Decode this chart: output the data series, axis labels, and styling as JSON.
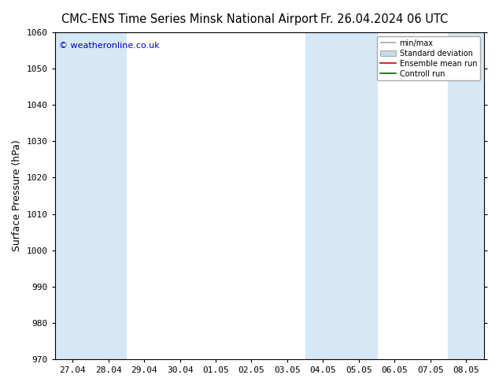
{
  "title_left": "CMC-ENS Time Series Minsk National Airport",
  "title_right": "Fr. 26.04.2024 06 UTC",
  "ylabel": "Surface Pressure (hPa)",
  "ylim": [
    970,
    1060
  ],
  "yticks": [
    970,
    980,
    990,
    1000,
    1010,
    1020,
    1030,
    1040,
    1050,
    1060
  ],
  "x_labels": [
    "27.04",
    "28.04",
    "29.04",
    "30.04",
    "01.05",
    "02.05",
    "03.05",
    "04.05",
    "05.05",
    "06.05",
    "07.05",
    "08.05"
  ],
  "x_positions": [
    0,
    1,
    2,
    3,
    4,
    5,
    6,
    7,
    8,
    9,
    10,
    11
  ],
  "shaded_intervals": [
    [
      -0.5,
      1.5
    ],
    [
      6.5,
      9.0
    ],
    [
      10.5,
      11.5
    ]
  ],
  "band_color": "#d6e8f5",
  "watermark": "© weatheronline.co.uk",
  "legend_labels": [
    "min/max",
    "Standard deviation",
    "Ensemble mean run",
    "Controll run"
  ],
  "background_color": "#ffffff",
  "title_fontsize": 10.5,
  "tick_fontsize": 8,
  "ylabel_fontsize": 9,
  "watermark_color": "#0000cc"
}
